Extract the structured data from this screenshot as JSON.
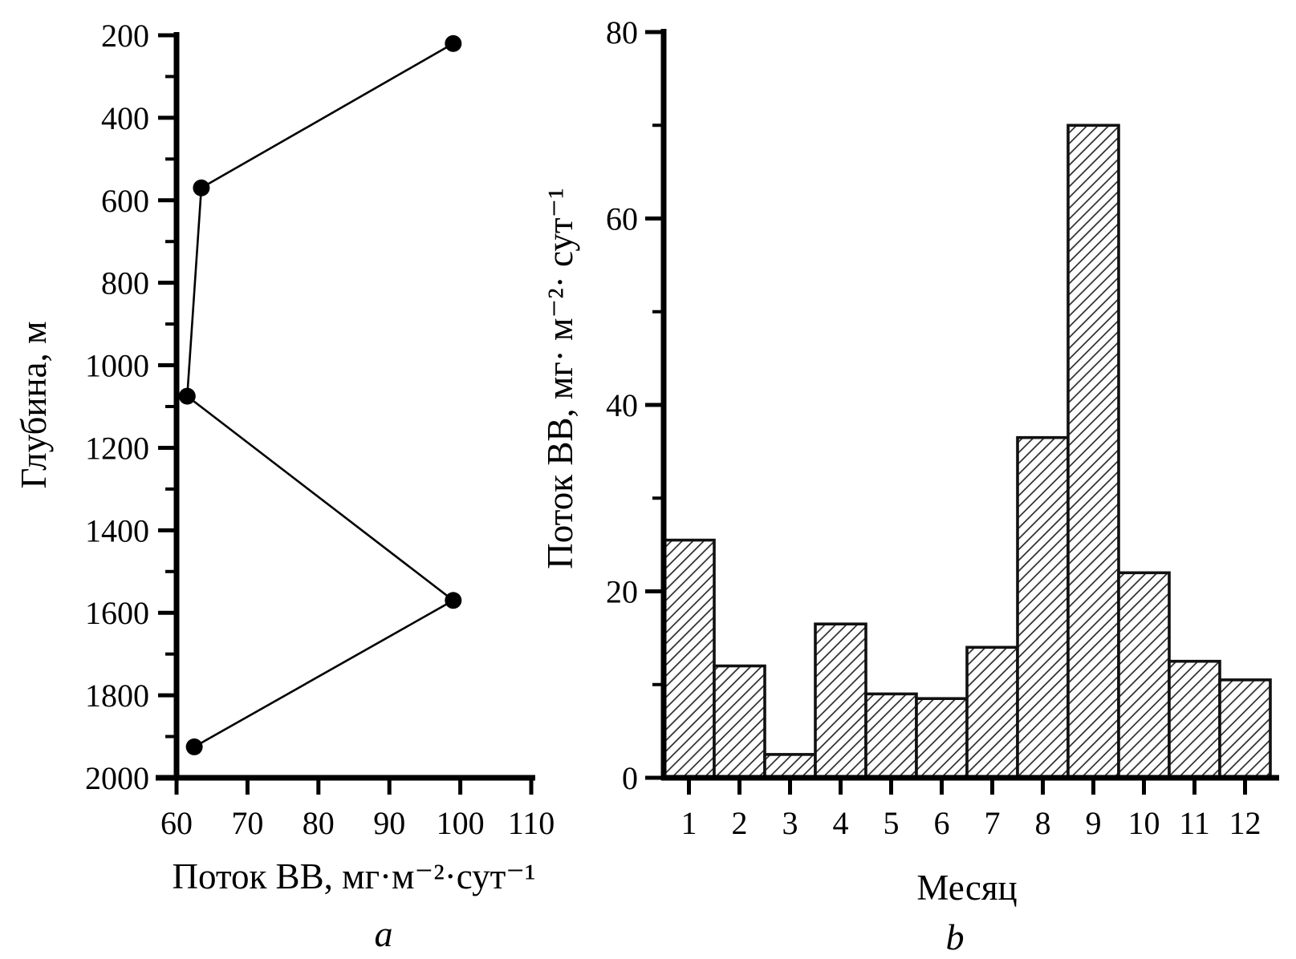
{
  "figure": {
    "background": "#ffffff",
    "ink_color": "#000000"
  },
  "chart_data": [
    {
      "type": "line",
      "panel_label": "a",
      "xlabel": "Поток ВВ, мг·м⁻²·сут⁻¹",
      "ylabel": "Глубина, м",
      "x": [
        99,
        63.5,
        61.5,
        99,
        62.5
      ],
      "y": [
        220,
        570,
        1075,
        1570,
        1925
      ],
      "xlim": [
        60,
        110
      ],
      "xtick_step": 10,
      "ylim": [
        200,
        2000
      ],
      "ytick_step": 200,
      "ytick_minor_step": 100,
      "y_inverted": true,
      "grid": false,
      "marker": "filled-circle",
      "marker_color": "#000000",
      "line_color": "#000000"
    },
    {
      "type": "bar",
      "panel_label": "b",
      "xlabel": "Месяц",
      "ylabel": "Поток ВВ, мг· м⁻²· сут⁻¹",
      "categories": [
        "1",
        "2",
        "3",
        "4",
        "5",
        "6",
        "7",
        "8",
        "9",
        "10",
        "11",
        "12"
      ],
      "values": [
        25.5,
        12,
        2.5,
        16.5,
        9,
        8.5,
        14,
        36.5,
        70,
        22,
        12.5,
        10.5
      ],
      "ylim": [
        0,
        80
      ],
      "ytick_step": 20,
      "ytick_minor_step": 10,
      "grid": false,
      "bar_fill": "diagonal-hatch",
      "bar_edge_color": "#111111"
    }
  ]
}
